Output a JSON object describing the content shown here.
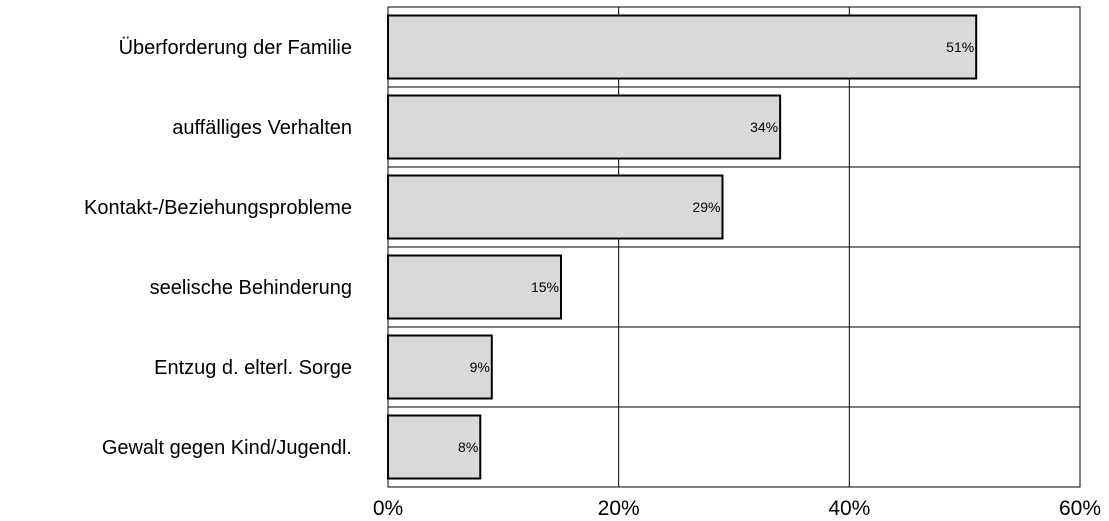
{
  "chart_data": {
    "type": "bar",
    "orientation": "horizontal",
    "categories": [
      "Überforderung der Familie",
      "auffälliges Verhalten",
      "Kontakt-/Beziehungsprobleme",
      "seelische Behinderung",
      "Entzug d. elterl. Sorge",
      "Gewalt gegen Kind/Jugendl."
    ],
    "values": [
      51,
      34,
      29,
      15,
      9,
      8
    ],
    "data_labels": [
      "51%",
      "34%",
      "29%",
      "15%",
      "9%",
      "8%"
    ],
    "xlim": [
      0,
      60
    ],
    "x_ticks": [
      0,
      20,
      40,
      60
    ],
    "x_tick_labels": [
      "0%",
      "20%",
      "40%",
      "60%"
    ],
    "grid": true,
    "legend": "none",
    "title": "",
    "xlabel": "",
    "ylabel": "",
    "colors": {
      "bar_fill": "#d9d9d9",
      "bar_stroke": "#000000",
      "grid": "#000000",
      "text": "#000000"
    }
  }
}
